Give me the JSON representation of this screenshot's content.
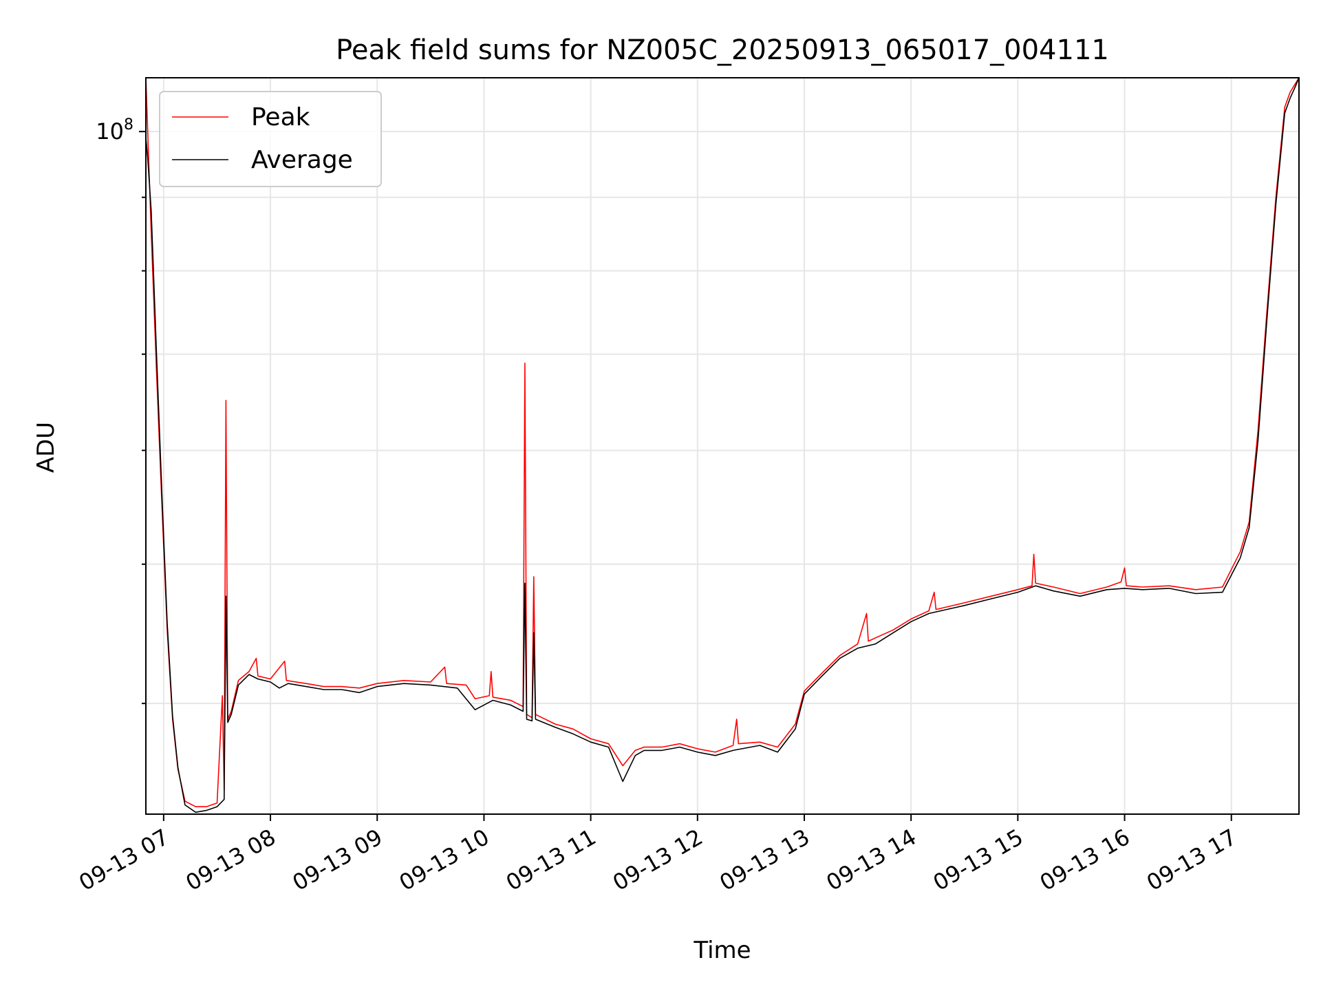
{
  "chart_data": {
    "type": "line",
    "title": "Peak field sums for NZ005C_20250913_065017_004111",
    "xlabel": "Time",
    "ylabel": "ADU",
    "x_range": [
      "2025-09-13 06:50",
      "2025-09-13 17:38"
    ],
    "y_scale": "log",
    "ylim": [
      33500000,
      109000000
    ],
    "y_tick_labels": [
      {
        "value": 100000000,
        "base": "10",
        "exponent": "8"
      }
    ],
    "x_tick_labels": [
      {
        "time": "2025-09-13 07:00",
        "label": "09-13 07"
      },
      {
        "time": "2025-09-13 08:00",
        "label": "09-13 08"
      },
      {
        "time": "2025-09-13 09:00",
        "label": "09-13 09"
      },
      {
        "time": "2025-09-13 10:00",
        "label": "09-13 10"
      },
      {
        "time": "2025-09-13 11:00",
        "label": "09-13 11"
      },
      {
        "time": "2025-09-13 12:00",
        "label": "09-13 12"
      },
      {
        "time": "2025-09-13 13:00",
        "label": "09-13 13"
      },
      {
        "time": "2025-09-13 14:00",
        "label": "09-13 14"
      },
      {
        "time": "2025-09-13 15:00",
        "label": "09-13 15"
      },
      {
        "time": "2025-09-13 16:00",
        "label": "09-13 16"
      },
      {
        "time": "2025-09-13 17:00",
        "label": "09-13 17"
      }
    ],
    "grid": true,
    "legend": {
      "location": "top-left",
      "entries": [
        "Peak",
        "Average"
      ]
    },
    "series": [
      {
        "name": "Peak",
        "color": "#ff0000",
        "points": [
          [
            "2025-09-13 06:50",
            109000000
          ],
          [
            "2025-09-13 06:53",
            85000000
          ],
          [
            "2025-09-13 06:56",
            68000000
          ],
          [
            "2025-09-13 06:59",
            55000000
          ],
          [
            "2025-09-13 07:02",
            45000000
          ],
          [
            "2025-09-13 07:05",
            39000000
          ],
          [
            "2025-09-13 07:08",
            36000000
          ],
          [
            "2025-09-13 07:12",
            34200000
          ],
          [
            "2025-09-13 07:18",
            33900000
          ],
          [
            "2025-09-13 07:24",
            33900000
          ],
          [
            "2025-09-13 07:30",
            34100000
          ],
          [
            "2025-09-13 07:33",
            40500000
          ],
          [
            "2025-09-13 07:34",
            34800000
          ],
          [
            "2025-09-13 07:35",
            65000000
          ],
          [
            "2025-09-13 07:36",
            39000000
          ],
          [
            "2025-09-13 07:38",
            39500000
          ],
          [
            "2025-09-13 07:42",
            41500000
          ],
          [
            "2025-09-13 07:48",
            42100000
          ],
          [
            "2025-09-13 07:52",
            43000000
          ],
          [
            "2025-09-13 07:53",
            41800000
          ],
          [
            "2025-09-13 08:00",
            41600000
          ],
          [
            "2025-09-13 08:08",
            42800000
          ],
          [
            "2025-09-13 08:09",
            41500000
          ],
          [
            "2025-09-13 08:20",
            41300000
          ],
          [
            "2025-09-13 08:30",
            41100000
          ],
          [
            "2025-09-13 08:40",
            41100000
          ],
          [
            "2025-09-13 08:50",
            41000000
          ],
          [
            "2025-09-13 09:00",
            41300000
          ],
          [
            "2025-09-13 09:15",
            41500000
          ],
          [
            "2025-09-13 09:30",
            41400000
          ],
          [
            "2025-09-13 09:38",
            42400000
          ],
          [
            "2025-09-13 09:39",
            41300000
          ],
          [
            "2025-09-13 09:50",
            41200000
          ],
          [
            "2025-09-13 09:55",
            40300000
          ],
          [
            "2025-09-13 10:03",
            40500000
          ],
          [
            "2025-09-13 10:04",
            42100000
          ],
          [
            "2025-09-13 10:05",
            40400000
          ],
          [
            "2025-09-13 10:15",
            40200000
          ],
          [
            "2025-09-13 10:22",
            39800000
          ],
          [
            "2025-09-13 10:23",
            69000000
          ],
          [
            "2025-09-13 10:24",
            39300000
          ],
          [
            "2025-09-13 10:27",
            39100000
          ],
          [
            "2025-09-13 10:28",
            49000000
          ],
          [
            "2025-09-13 10:29",
            39300000
          ],
          [
            "2025-09-13 10:40",
            38700000
          ],
          [
            "2025-09-13 10:50",
            38400000
          ],
          [
            "2025-09-13 11:00",
            37800000
          ],
          [
            "2025-09-13 11:10",
            37500000
          ],
          [
            "2025-09-13 11:18",
            36200000
          ],
          [
            "2025-09-13 11:25",
            37100000
          ],
          [
            "2025-09-13 11:30",
            37300000
          ],
          [
            "2025-09-13 11:40",
            37300000
          ],
          [
            "2025-09-13 11:50",
            37500000
          ],
          [
            "2025-09-13 12:00",
            37200000
          ],
          [
            "2025-09-13 12:10",
            37000000
          ],
          [
            "2025-09-13 12:20",
            37400000
          ],
          [
            "2025-09-13 12:22",
            39000000
          ],
          [
            "2025-09-13 12:23",
            37500000
          ],
          [
            "2025-09-13 12:35",
            37600000
          ],
          [
            "2025-09-13 12:45",
            37300000
          ],
          [
            "2025-09-13 12:55",
            38700000
          ],
          [
            "2025-09-13 13:00",
            40800000
          ],
          [
            "2025-09-13 13:10",
            42000000
          ],
          [
            "2025-09-13 13:20",
            43200000
          ],
          [
            "2025-09-13 13:30",
            44000000
          ],
          [
            "2025-09-13 13:35",
            46200000
          ],
          [
            "2025-09-13 13:36",
            44200000
          ],
          [
            "2025-09-13 13:50",
            45000000
          ],
          [
            "2025-09-13 14:00",
            45800000
          ],
          [
            "2025-09-13 14:10",
            46400000
          ],
          [
            "2025-09-13 14:13",
            47800000
          ],
          [
            "2025-09-13 14:14",
            46500000
          ],
          [
            "2025-09-13 14:30",
            47000000
          ],
          [
            "2025-09-13 14:45",
            47500000
          ],
          [
            "2025-09-13 15:00",
            48000000
          ],
          [
            "2025-09-13 15:08",
            48300000
          ],
          [
            "2025-09-13 15:09",
            50800000
          ],
          [
            "2025-09-13 15:10",
            48500000
          ],
          [
            "2025-09-13 15:20",
            48200000
          ],
          [
            "2025-09-13 15:35",
            47700000
          ],
          [
            "2025-09-13 15:50",
            48200000
          ],
          [
            "2025-09-13 15:58",
            48600000
          ],
          [
            "2025-09-13 16:00",
            49700000
          ],
          [
            "2025-09-13 16:01",
            48300000
          ],
          [
            "2025-09-13 16:10",
            48200000
          ],
          [
            "2025-09-13 16:25",
            48300000
          ],
          [
            "2025-09-13 16:40",
            48000000
          ],
          [
            "2025-09-13 16:55",
            48200000
          ],
          [
            "2025-09-13 17:05",
            51000000
          ],
          [
            "2025-09-13 17:10",
            53500000
          ],
          [
            "2025-09-13 17:15",
            62000000
          ],
          [
            "2025-09-13 17:20",
            75000000
          ],
          [
            "2025-09-13 17:25",
            90000000
          ],
          [
            "2025-09-13 17:30",
            104000000
          ],
          [
            "2025-09-13 17:33",
            106500000
          ],
          [
            "2025-09-13 17:36",
            108000000
          ],
          [
            "2025-09-13 17:38",
            109000000
          ]
        ]
      },
      {
        "name": "Average",
        "color": "#000000",
        "points": [
          [
            "2025-09-13 06:50",
            99000000
          ],
          [
            "2025-09-13 06:51",
            96000000
          ],
          [
            "2025-09-13 06:53",
            88000000
          ],
          [
            "2025-09-13 06:56",
            70000000
          ],
          [
            "2025-09-13 06:59",
            56000000
          ],
          [
            "2025-09-13 07:02",
            45500000
          ],
          [
            "2025-09-13 07:05",
            39200000
          ],
          [
            "2025-09-13 07:08",
            36100000
          ],
          [
            "2025-09-13 07:12",
            34000000
          ],
          [
            "2025-09-13 07:18",
            33600000
          ],
          [
            "2025-09-13 07:24",
            33700000
          ],
          [
            "2025-09-13 07:30",
            33900000
          ],
          [
            "2025-09-13 07:34",
            34300000
          ],
          [
            "2025-09-13 07:35",
            47500000
          ],
          [
            "2025-09-13 07:36",
            38800000
          ],
          [
            "2025-09-13 07:38",
            39300000
          ],
          [
            "2025-09-13 07:42",
            41200000
          ],
          [
            "2025-09-13 07:48",
            41900000
          ],
          [
            "2025-09-13 07:53",
            41600000
          ],
          [
            "2025-09-13 08:00",
            41400000
          ],
          [
            "2025-09-13 08:05",
            41000000
          ],
          [
            "2025-09-13 08:10",
            41300000
          ],
          [
            "2025-09-13 08:20",
            41100000
          ],
          [
            "2025-09-13 08:30",
            40900000
          ],
          [
            "2025-09-13 08:40",
            40900000
          ],
          [
            "2025-09-13 08:50",
            40700000
          ],
          [
            "2025-09-13 09:00",
            41100000
          ],
          [
            "2025-09-13 09:15",
            41300000
          ],
          [
            "2025-09-13 09:30",
            41200000
          ],
          [
            "2025-09-13 09:45",
            41000000
          ],
          [
            "2025-09-13 09:55",
            39600000
          ],
          [
            "2025-09-13 10:05",
            40200000
          ],
          [
            "2025-09-13 10:15",
            39900000
          ],
          [
            "2025-09-13 10:22",
            39500000
          ],
          [
            "2025-09-13 10:23",
            48500000
          ],
          [
            "2025-09-13 10:24",
            39000000
          ],
          [
            "2025-09-13 10:27",
            38900000
          ],
          [
            "2025-09-13 10:28",
            44800000
          ],
          [
            "2025-09-13 10:29",
            39000000
          ],
          [
            "2025-09-13 10:40",
            38500000
          ],
          [
            "2025-09-13 10:50",
            38100000
          ],
          [
            "2025-09-13 11:00",
            37600000
          ],
          [
            "2025-09-13 11:10",
            37300000
          ],
          [
            "2025-09-13 11:18",
            35300000
          ],
          [
            "2025-09-13 11:25",
            36800000
          ],
          [
            "2025-09-13 11:30",
            37100000
          ],
          [
            "2025-09-13 11:40",
            37100000
          ],
          [
            "2025-09-13 11:50",
            37300000
          ],
          [
            "2025-09-13 12:00",
            37000000
          ],
          [
            "2025-09-13 12:10",
            36800000
          ],
          [
            "2025-09-13 12:20",
            37100000
          ],
          [
            "2025-09-13 12:35",
            37400000
          ],
          [
            "2025-09-13 12:45",
            37000000
          ],
          [
            "2025-09-13 12:55",
            38400000
          ],
          [
            "2025-09-13 13:00",
            40600000
          ],
          [
            "2025-09-13 13:10",
            41800000
          ],
          [
            "2025-09-13 13:20",
            43000000
          ],
          [
            "2025-09-13 13:30",
            43700000
          ],
          [
            "2025-09-13 13:40",
            44000000
          ],
          [
            "2025-09-13 13:50",
            44800000
          ],
          [
            "2025-09-13 14:00",
            45600000
          ],
          [
            "2025-09-13 14:10",
            46200000
          ],
          [
            "2025-09-13 14:20",
            46500000
          ],
          [
            "2025-09-13 14:30",
            46800000
          ],
          [
            "2025-09-13 14:45",
            47300000
          ],
          [
            "2025-09-13 15:00",
            47800000
          ],
          [
            "2025-09-13 15:10",
            48300000
          ],
          [
            "2025-09-13 15:20",
            47900000
          ],
          [
            "2025-09-13 15:35",
            47500000
          ],
          [
            "2025-09-13 15:50",
            48000000
          ],
          [
            "2025-09-13 16:00",
            48100000
          ],
          [
            "2025-09-13 16:10",
            48000000
          ],
          [
            "2025-09-13 16:25",
            48100000
          ],
          [
            "2025-09-13 16:40",
            47700000
          ],
          [
            "2025-09-13 16:55",
            47800000
          ],
          [
            "2025-09-13 17:05",
            50500000
          ],
          [
            "2025-09-13 17:10",
            53000000
          ],
          [
            "2025-09-13 17:15",
            61000000
          ],
          [
            "2025-09-13 17:20",
            74000000
          ],
          [
            "2025-09-13 17:25",
            89000000
          ],
          [
            "2025-09-13 17:30",
            103000000
          ],
          [
            "2025-09-13 17:33",
            105500000
          ],
          [
            "2025-09-13 17:36",
            107500000
          ],
          [
            "2025-09-13 17:38",
            109000000
          ]
        ]
      }
    ]
  }
}
